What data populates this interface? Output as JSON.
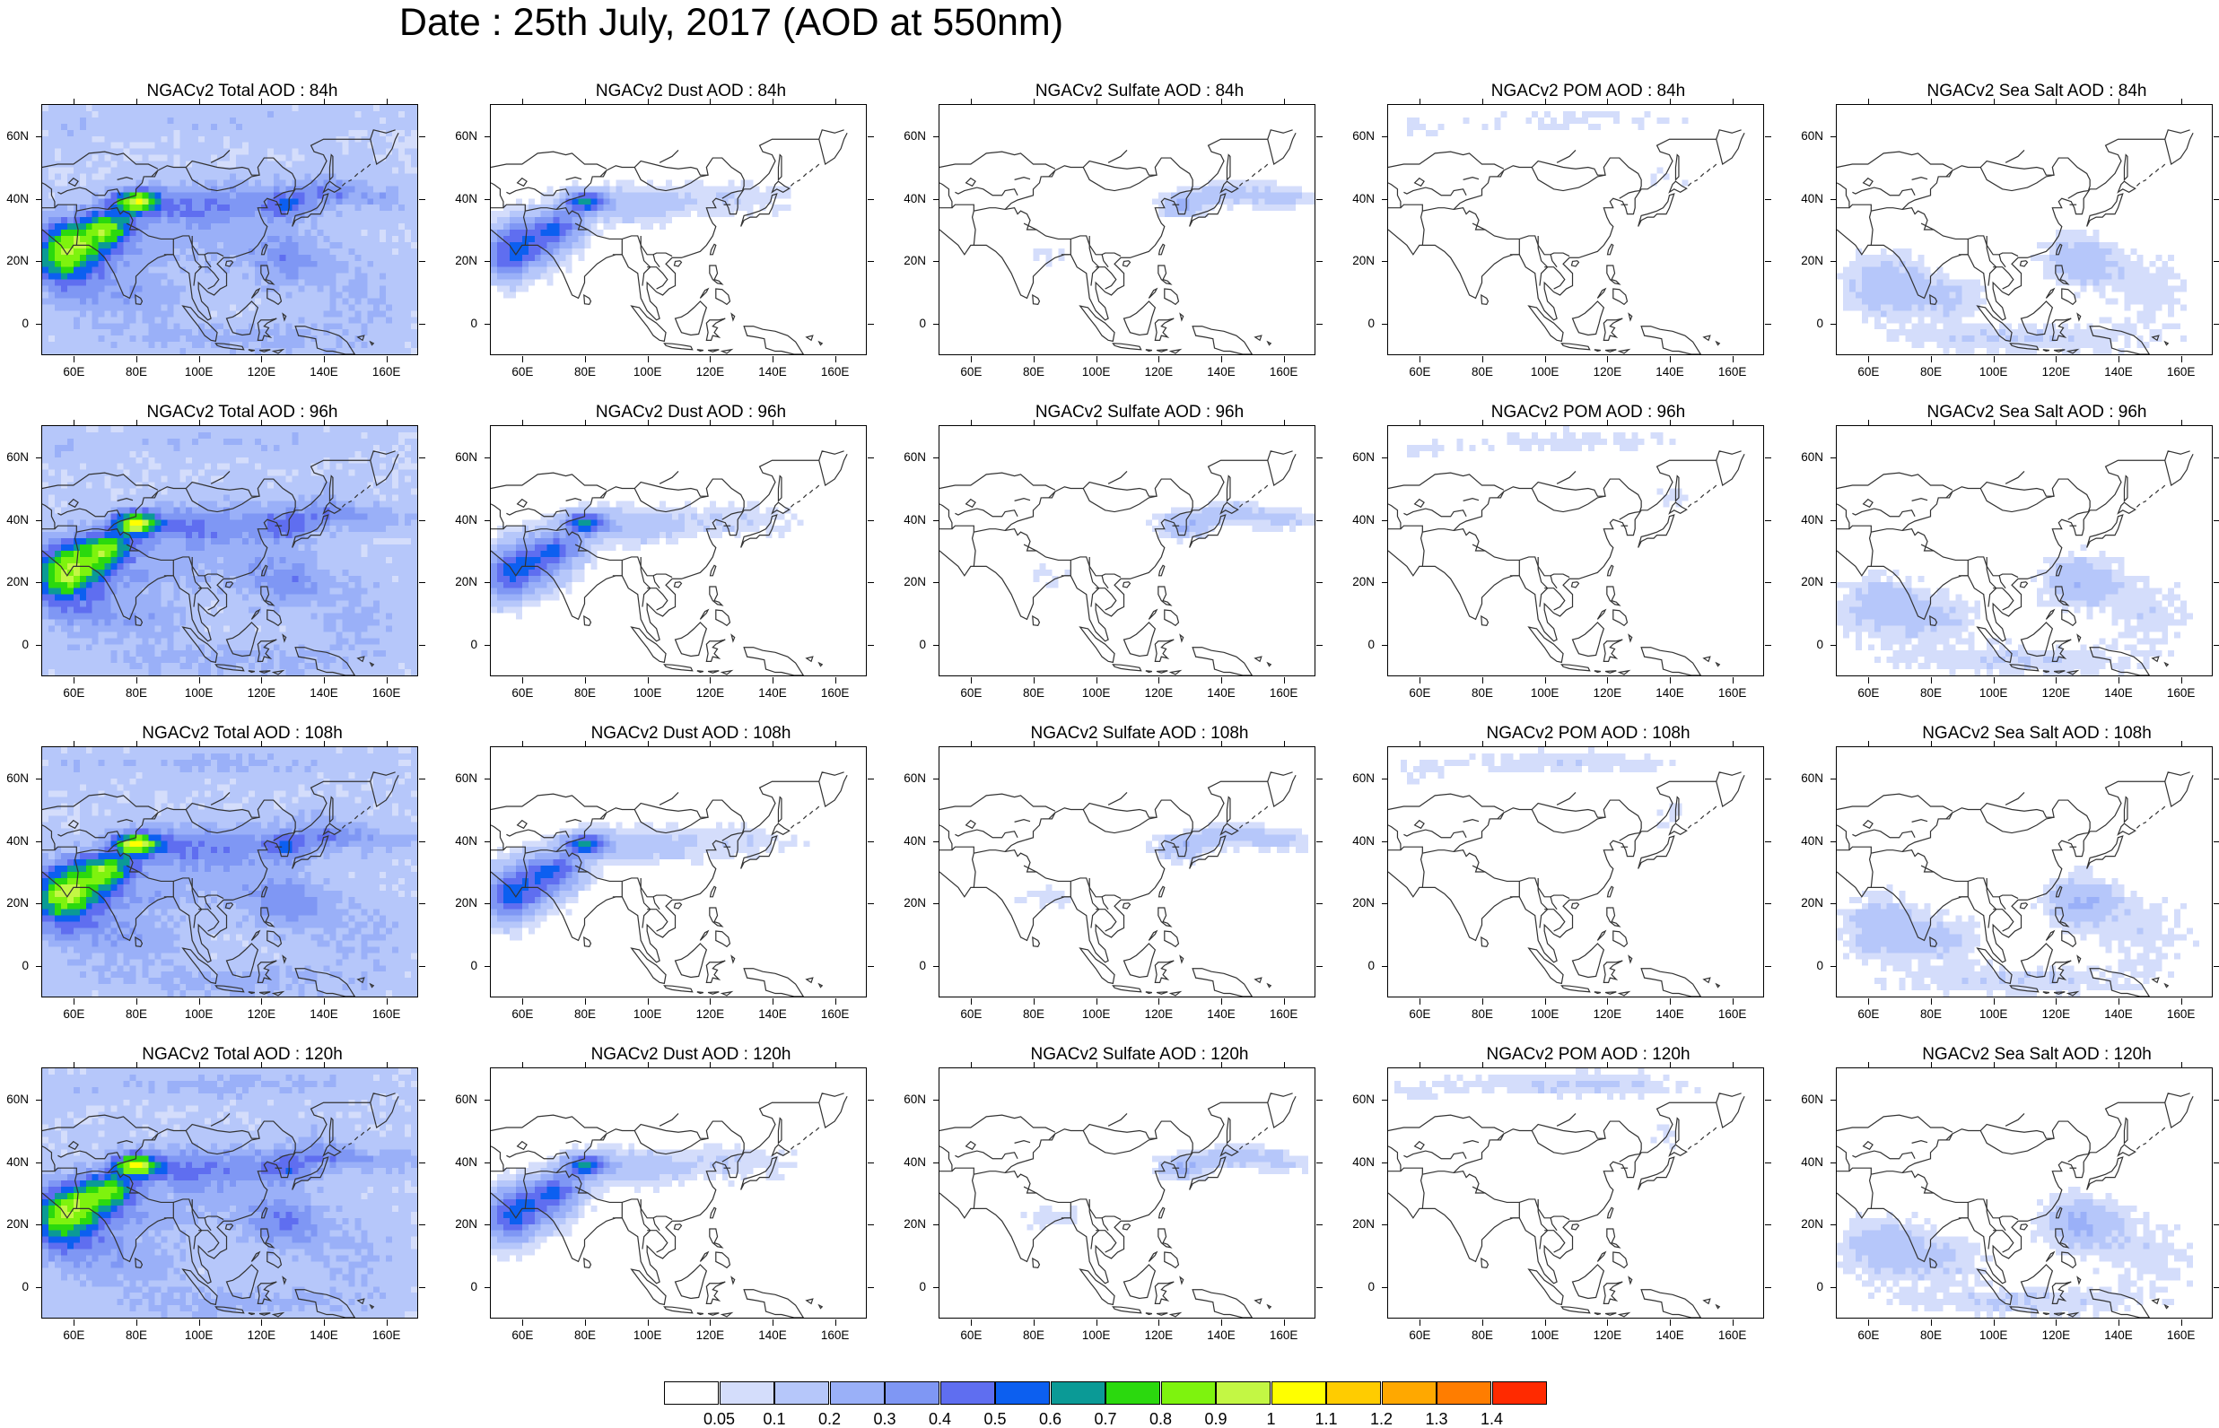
{
  "title": "Date : 25th July, 2017 (AOD at 550nm)",
  "panels": [
    {
      "title": "NGACv2 Total AOD : 84h",
      "species": "total",
      "hour": 84
    },
    {
      "title": "NGACv2 Dust AOD : 84h",
      "species": "dust",
      "hour": 84
    },
    {
      "title": "NGACv2 Sulfate AOD : 84h",
      "species": "sulfate",
      "hour": 84
    },
    {
      "title": "NGACv2 POM AOD : 84h",
      "species": "pom",
      "hour": 84
    },
    {
      "title": "NGACv2 Sea Salt AOD : 84h",
      "species": "seasalt",
      "hour": 84
    },
    {
      "title": "NGACv2 Total AOD : 96h",
      "species": "total",
      "hour": 96
    },
    {
      "title": "NGACv2 Dust AOD : 96h",
      "species": "dust",
      "hour": 96
    },
    {
      "title": "NGACv2 Sulfate AOD : 96h",
      "species": "sulfate",
      "hour": 96
    },
    {
      "title": "NGACv2 POM AOD : 96h",
      "species": "pom",
      "hour": 96
    },
    {
      "title": "NGACv2 Sea Salt AOD : 96h",
      "species": "seasalt",
      "hour": 96
    },
    {
      "title": "NGACv2 Total AOD : 108h",
      "species": "total",
      "hour": 108
    },
    {
      "title": "NGACv2 Dust AOD : 108h",
      "species": "dust",
      "hour": 108
    },
    {
      "title": "NGACv2 Sulfate AOD : 108h",
      "species": "sulfate",
      "hour": 108
    },
    {
      "title": "NGACv2 POM AOD : 108h",
      "species": "pom",
      "hour": 108
    },
    {
      "title": "NGACv2 Sea Salt AOD : 108h",
      "species": "seasalt",
      "hour": 108
    },
    {
      "title": "NGACv2 Total AOD : 120h",
      "species": "total",
      "hour": 120
    },
    {
      "title": "NGACv2 Dust AOD : 120h",
      "species": "dust",
      "hour": 120
    },
    {
      "title": "NGACv2 Sulfate AOD : 120h",
      "species": "sulfate",
      "hour": 120
    },
    {
      "title": "NGACv2 POM AOD : 120h",
      "species": "pom",
      "hour": 120
    },
    {
      "title": "NGACv2 Sea Salt  AOD : 120h",
      "species": "seasalt",
      "hour": 120
    }
  ],
  "axes": {
    "lon_range": [
      50,
      170
    ],
    "lat_range": [
      -10,
      70
    ],
    "lon_ticks": [
      60,
      80,
      100,
      120,
      140,
      160
    ],
    "lon_tick_labels": [
      "60E",
      "80E",
      "100E",
      "120E",
      "140E",
      "160E"
    ],
    "lat_ticks": [
      0,
      20,
      40,
      60
    ],
    "lat_tick_labels": [
      "0",
      "20N",
      "40N",
      "60N"
    ]
  },
  "colorbar": {
    "labels": [
      "0.05",
      "0.1",
      "0.2",
      "0.3",
      "0.4",
      "0.5",
      "0.6",
      "0.7",
      "0.8",
      "0.9",
      "1",
      "1.1",
      "1.2",
      "1.3",
      "1.4"
    ],
    "colors": [
      "#ffffff",
      "#d4ddfb",
      "#b6c7fa",
      "#9ab0f8",
      "#7f97f4",
      "#5f6ef0",
      "#0c5ff0",
      "#0b9a96",
      "#2bd90e",
      "#7ef30e",
      "#c3f744",
      "#ffff00",
      "#ffcc00",
      "#ffa800",
      "#ff7d00",
      "#ff2a00"
    ]
  }
}
